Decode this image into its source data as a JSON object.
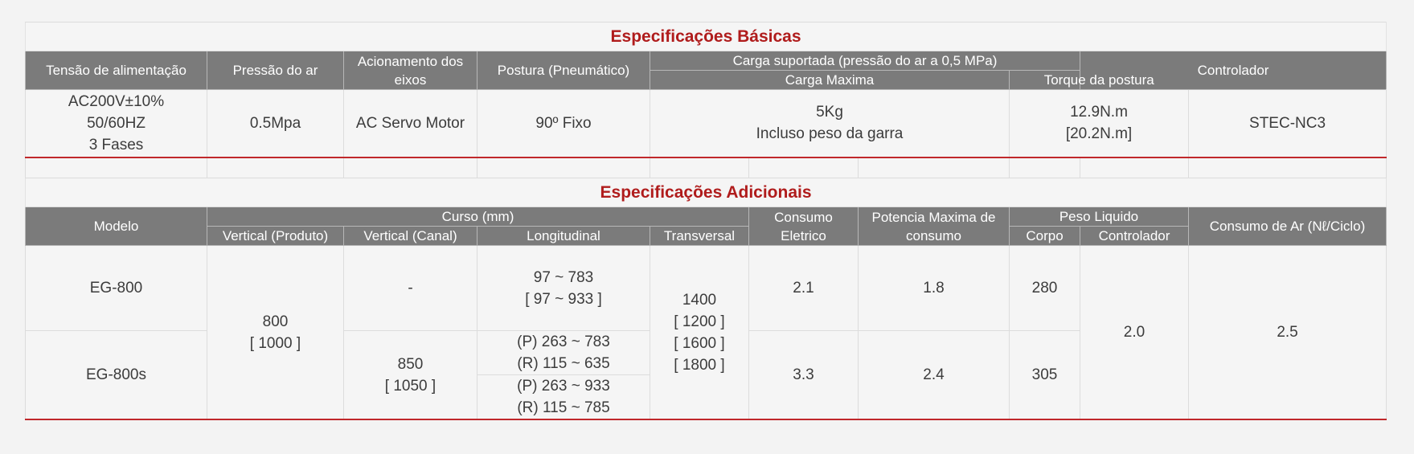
{
  "basic": {
    "title": "Especificações Básicas",
    "headers": {
      "voltage": "Tensão de alimentação",
      "air_pressure": "Pressão do ar",
      "drive": "Acionamento dos eixos",
      "posture": "Postura (Pneumático)",
      "load": "Carga suportada (pressão do ar a 0,5 MPa)",
      "max_load": "Carga Maxima",
      "torque": "Torque da postura",
      "controller": "Controlador"
    },
    "row": {
      "voltage": "AC200V±10%\n50/60HZ\n3 Fases",
      "air_pressure": "0.5Mpa",
      "drive": "AC Servo Motor",
      "posture": "90º Fixo",
      "max_load": "5Kg\nIncluso peso da garra",
      "torque": "12.9N.m\n[20.2N.m]",
      "controller": "STEC-NC3"
    }
  },
  "additional": {
    "title": "Especificações Adicionais",
    "headers": {
      "model": "Modelo",
      "stroke": "Curso (mm)",
      "vertical_product": "Vertical (Produto)",
      "vertical_channel": "Vertical (Canal)",
      "longitudinal": "Longitudinal",
      "transversal": "Transversal",
      "consumption": "Consumo Eletrico",
      "max_power": "Potencia Maxima de consumo",
      "net_weight": "Peso Liquido",
      "body": "Corpo",
      "controller": "Controlador",
      "air_consumption": "Consumo de Ar (Nℓ/Ciclo)"
    },
    "shared": {
      "vertical_product": "800\n[ 1000 ]",
      "transversal": "1400\n[ 1200 ]\n[ 1600 ]\n[ 1800 ]",
      "controller_weight": "2.0",
      "air_consumption": "2.5"
    },
    "rows": [
      {
        "model": "EG-800",
        "vertical_channel": "-",
        "longitudinal": "97 ~ 783\n[ 97 ~ 933 ]",
        "consumption": "2.1",
        "max_power": "1.8",
        "body": "280"
      },
      {
        "model": "EG-800s",
        "vertical_channel": "850\n[ 1050 ]",
        "longitudinal_a": "(P) 263 ~ 783\n(R) 115 ~ 635",
        "longitudinal_b": "(P) 263 ~ 933\n(R) 115 ~ 785",
        "consumption": "3.3",
        "max_power": "2.4",
        "body": "305"
      }
    ]
  }
}
